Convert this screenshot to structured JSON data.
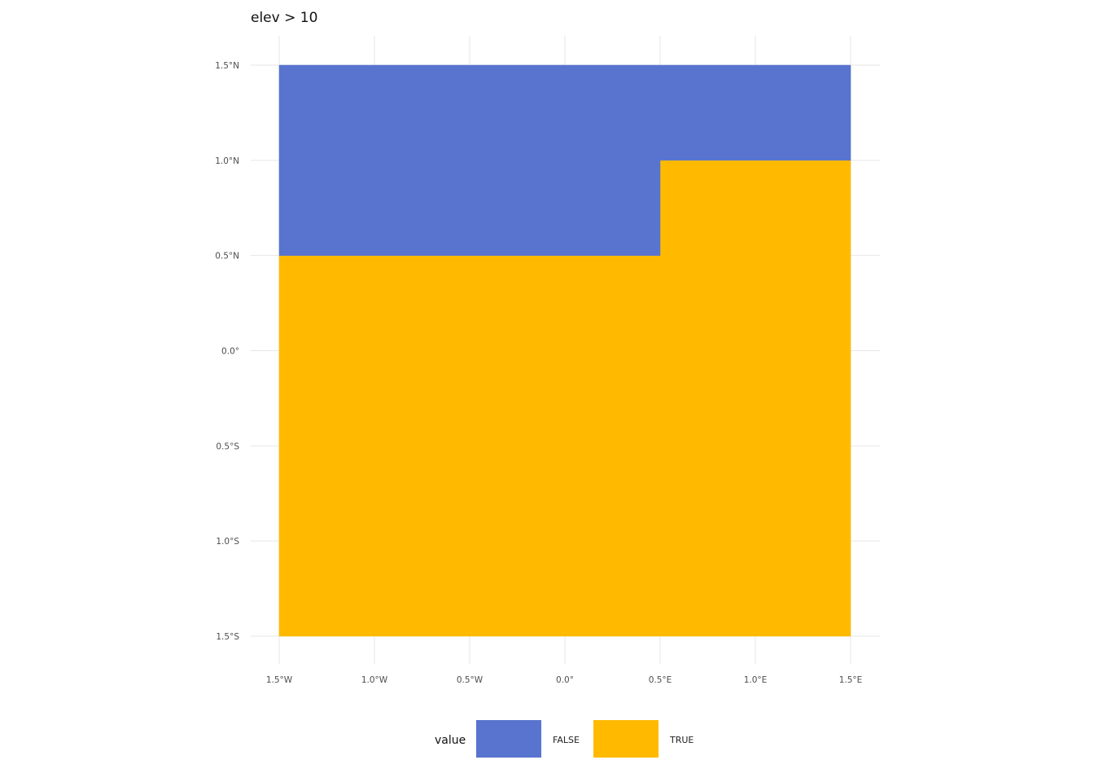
{
  "chart_data": {
    "type": "heatmap",
    "title": "elev > 10",
    "x_ticks": [
      {
        "value": -1.5,
        "label": "1.5°W"
      },
      {
        "value": -1.0,
        "label": "1.0°W"
      },
      {
        "value": -0.5,
        "label": "0.5°W"
      },
      {
        "value": 0.0,
        "label": "0.0°"
      },
      {
        "value": 0.5,
        "label": "0.5°E"
      },
      {
        "value": 1.0,
        "label": "1.0°E"
      },
      {
        "value": 1.5,
        "label": "1.5°E"
      }
    ],
    "y_ticks": [
      {
        "value": 1.5,
        "label": "1.5°N"
      },
      {
        "value": 1.0,
        "label": "1.0°N"
      },
      {
        "value": 0.5,
        "label": "0.5°N"
      },
      {
        "value": 0.0,
        "label": "0.0°"
      },
      {
        "value": -0.5,
        "label": "0.5°S"
      },
      {
        "value": -1.0,
        "label": "1.0°S"
      },
      {
        "value": -1.5,
        "label": "1.5°S"
      }
    ],
    "xlim": [
      -1.5,
      1.5
    ],
    "ylim": [
      -1.5,
      1.5
    ],
    "grid": true,
    "regions": [
      {
        "name": "TRUE",
        "polygon": [
          [
            -1.5,
            -1.5
          ],
          [
            1.5,
            -1.5
          ],
          [
            1.5,
            1.0
          ],
          [
            0.5,
            1.0
          ],
          [
            0.5,
            0.5
          ],
          [
            -1.5,
            0.5
          ]
        ]
      },
      {
        "name": "FALSE",
        "polygon": [
          [
            -1.5,
            0.5
          ],
          [
            0.5,
            0.5
          ],
          [
            0.5,
            1.0
          ],
          [
            1.5,
            1.0
          ],
          [
            1.5,
            1.5
          ],
          [
            -1.5,
            1.5
          ]
        ]
      }
    ],
    "legend": {
      "title": "value",
      "position": "bottom",
      "entries": [
        {
          "label": "FALSE",
          "color": "#5874CE"
        },
        {
          "label": "TRUE",
          "color": "#FFBA00"
        }
      ]
    }
  }
}
